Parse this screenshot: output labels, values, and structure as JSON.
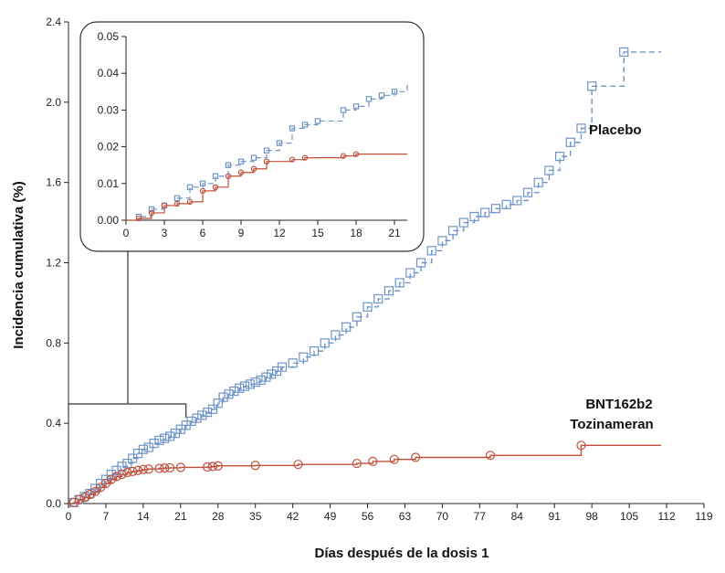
{
  "chart_data": [
    {
      "type": "line",
      "title": "",
      "xlabel": "Días después de la dosis 1",
      "ylabel": "Incidencia cumulativa (%)",
      "xlim": [
        0,
        119
      ],
      "ylim": [
        0,
        2.4
      ],
      "xticks": [
        "0",
        "7",
        "14",
        "21",
        "28",
        "35",
        "42",
        "49",
        "56",
        "63",
        "70",
        "77",
        "84",
        "91",
        "98",
        "105",
        "112",
        "119"
      ],
      "yticks": [
        "0.0",
        "0.4",
        "0.8",
        "1.2",
        "1.6",
        "2.0",
        "2.4"
      ],
      "grid": false,
      "series_labels": [
        "Placebo",
        "BNT162b2",
        "Tozinameran"
      ],
      "series": [
        {
          "name": "Placebo",
          "color": "#6f95c8",
          "marker": "square",
          "style": "dashed-step",
          "x": [
            1,
            2,
            3,
            4,
            5,
            6,
            7,
            8,
            9,
            10,
            11,
            12,
            13,
            14,
            15,
            16,
            17,
            18,
            19,
            20,
            21,
            22,
            23,
            24,
            25,
            26,
            27,
            28,
            29,
            30,
            31,
            32,
            33,
            34,
            35,
            36,
            37,
            38,
            39,
            40,
            42,
            44,
            46,
            48,
            50,
            52,
            54,
            56,
            58,
            60,
            62,
            64,
            66,
            68,
            70,
            72,
            74,
            76,
            78,
            80,
            82,
            84,
            86,
            88,
            90,
            92,
            94,
            96,
            98,
            104,
            111
          ],
          "y": [
            0.005,
            0.02,
            0.035,
            0.05,
            0.075,
            0.1,
            0.12,
            0.145,
            0.165,
            0.185,
            0.2,
            0.225,
            0.25,
            0.27,
            0.28,
            0.3,
            0.315,
            0.325,
            0.335,
            0.35,
            0.37,
            0.39,
            0.41,
            0.425,
            0.44,
            0.455,
            0.47,
            0.5,
            0.53,
            0.545,
            0.56,
            0.575,
            0.585,
            0.595,
            0.605,
            0.615,
            0.63,
            0.645,
            0.66,
            0.68,
            0.7,
            0.73,
            0.76,
            0.8,
            0.84,
            0.88,
            0.93,
            0.98,
            1.02,
            1.06,
            1.1,
            1.15,
            1.2,
            1.26,
            1.31,
            1.36,
            1.4,
            1.43,
            1.45,
            1.47,
            1.49,
            1.51,
            1.55,
            1.6,
            1.66,
            1.73,
            1.8,
            1.87,
            2.08,
            2.25,
            2.25
          ]
        },
        {
          "name": "BNT162b2",
          "color": "#c0503c",
          "marker": "circle",
          "style": "solid-step",
          "x": [
            1,
            2,
            3,
            4,
            5,
            6,
            7,
            8,
            9,
            10,
            11,
            12,
            13,
            14,
            15,
            17,
            18,
            19,
            21,
            26,
            27,
            28,
            35,
            43,
            54,
            57,
            61,
            65,
            79,
            96,
            111
          ],
          "y": [
            0.005,
            0.02,
            0.03,
            0.045,
            0.06,
            0.08,
            0.1,
            0.12,
            0.135,
            0.145,
            0.155,
            0.16,
            0.165,
            0.17,
            0.172,
            0.175,
            0.177,
            0.178,
            0.18,
            0.182,
            0.185,
            0.188,
            0.19,
            0.195,
            0.2,
            0.21,
            0.22,
            0.23,
            0.24,
            0.29,
            0.29
          ]
        }
      ],
      "annotations": [
        "Placebo",
        "BNT162b2",
        "Tozinameran"
      ]
    },
    {
      "type": "line",
      "title": "",
      "inset": true,
      "xlim": [
        0,
        22
      ],
      "ylim": [
        0,
        0.05
      ],
      "xticks": [
        "0",
        "3",
        "6",
        "9",
        "12",
        "15",
        "18",
        "21"
      ],
      "yticks": [
        "0.00",
        "0.01",
        "0.02",
        "0.03",
        "0.04",
        "0.05"
      ],
      "series": [
        {
          "name": "Placebo",
          "color": "#6f95c8",
          "marker": "square",
          "style": "dashed-step",
          "x": [
            1,
            2,
            3,
            4,
            5,
            6,
            7,
            8,
            9,
            10,
            11,
            12,
            13,
            14,
            15,
            17,
            18,
            19,
            20,
            21,
            22
          ],
          "y": [
            0.001,
            0.003,
            0.004,
            0.006,
            0.009,
            0.01,
            0.012,
            0.015,
            0.016,
            0.017,
            0.019,
            0.021,
            0.025,
            0.026,
            0.027,
            0.03,
            0.031,
            0.033,
            0.034,
            0.035,
            0.037
          ]
        },
        {
          "name": "BNT162b2",
          "color": "#c0503c",
          "marker": "circle",
          "style": "solid-step",
          "x": [
            1,
            2,
            3,
            4,
            5,
            6,
            7,
            8,
            9,
            10,
            11,
            13,
            14,
            17,
            18,
            22
          ],
          "y": [
            0.0005,
            0.002,
            0.004,
            0.0045,
            0.005,
            0.008,
            0.009,
            0.012,
            0.013,
            0.014,
            0.016,
            0.0165,
            0.017,
            0.0175,
            0.018,
            0.018
          ]
        }
      ]
    }
  ]
}
